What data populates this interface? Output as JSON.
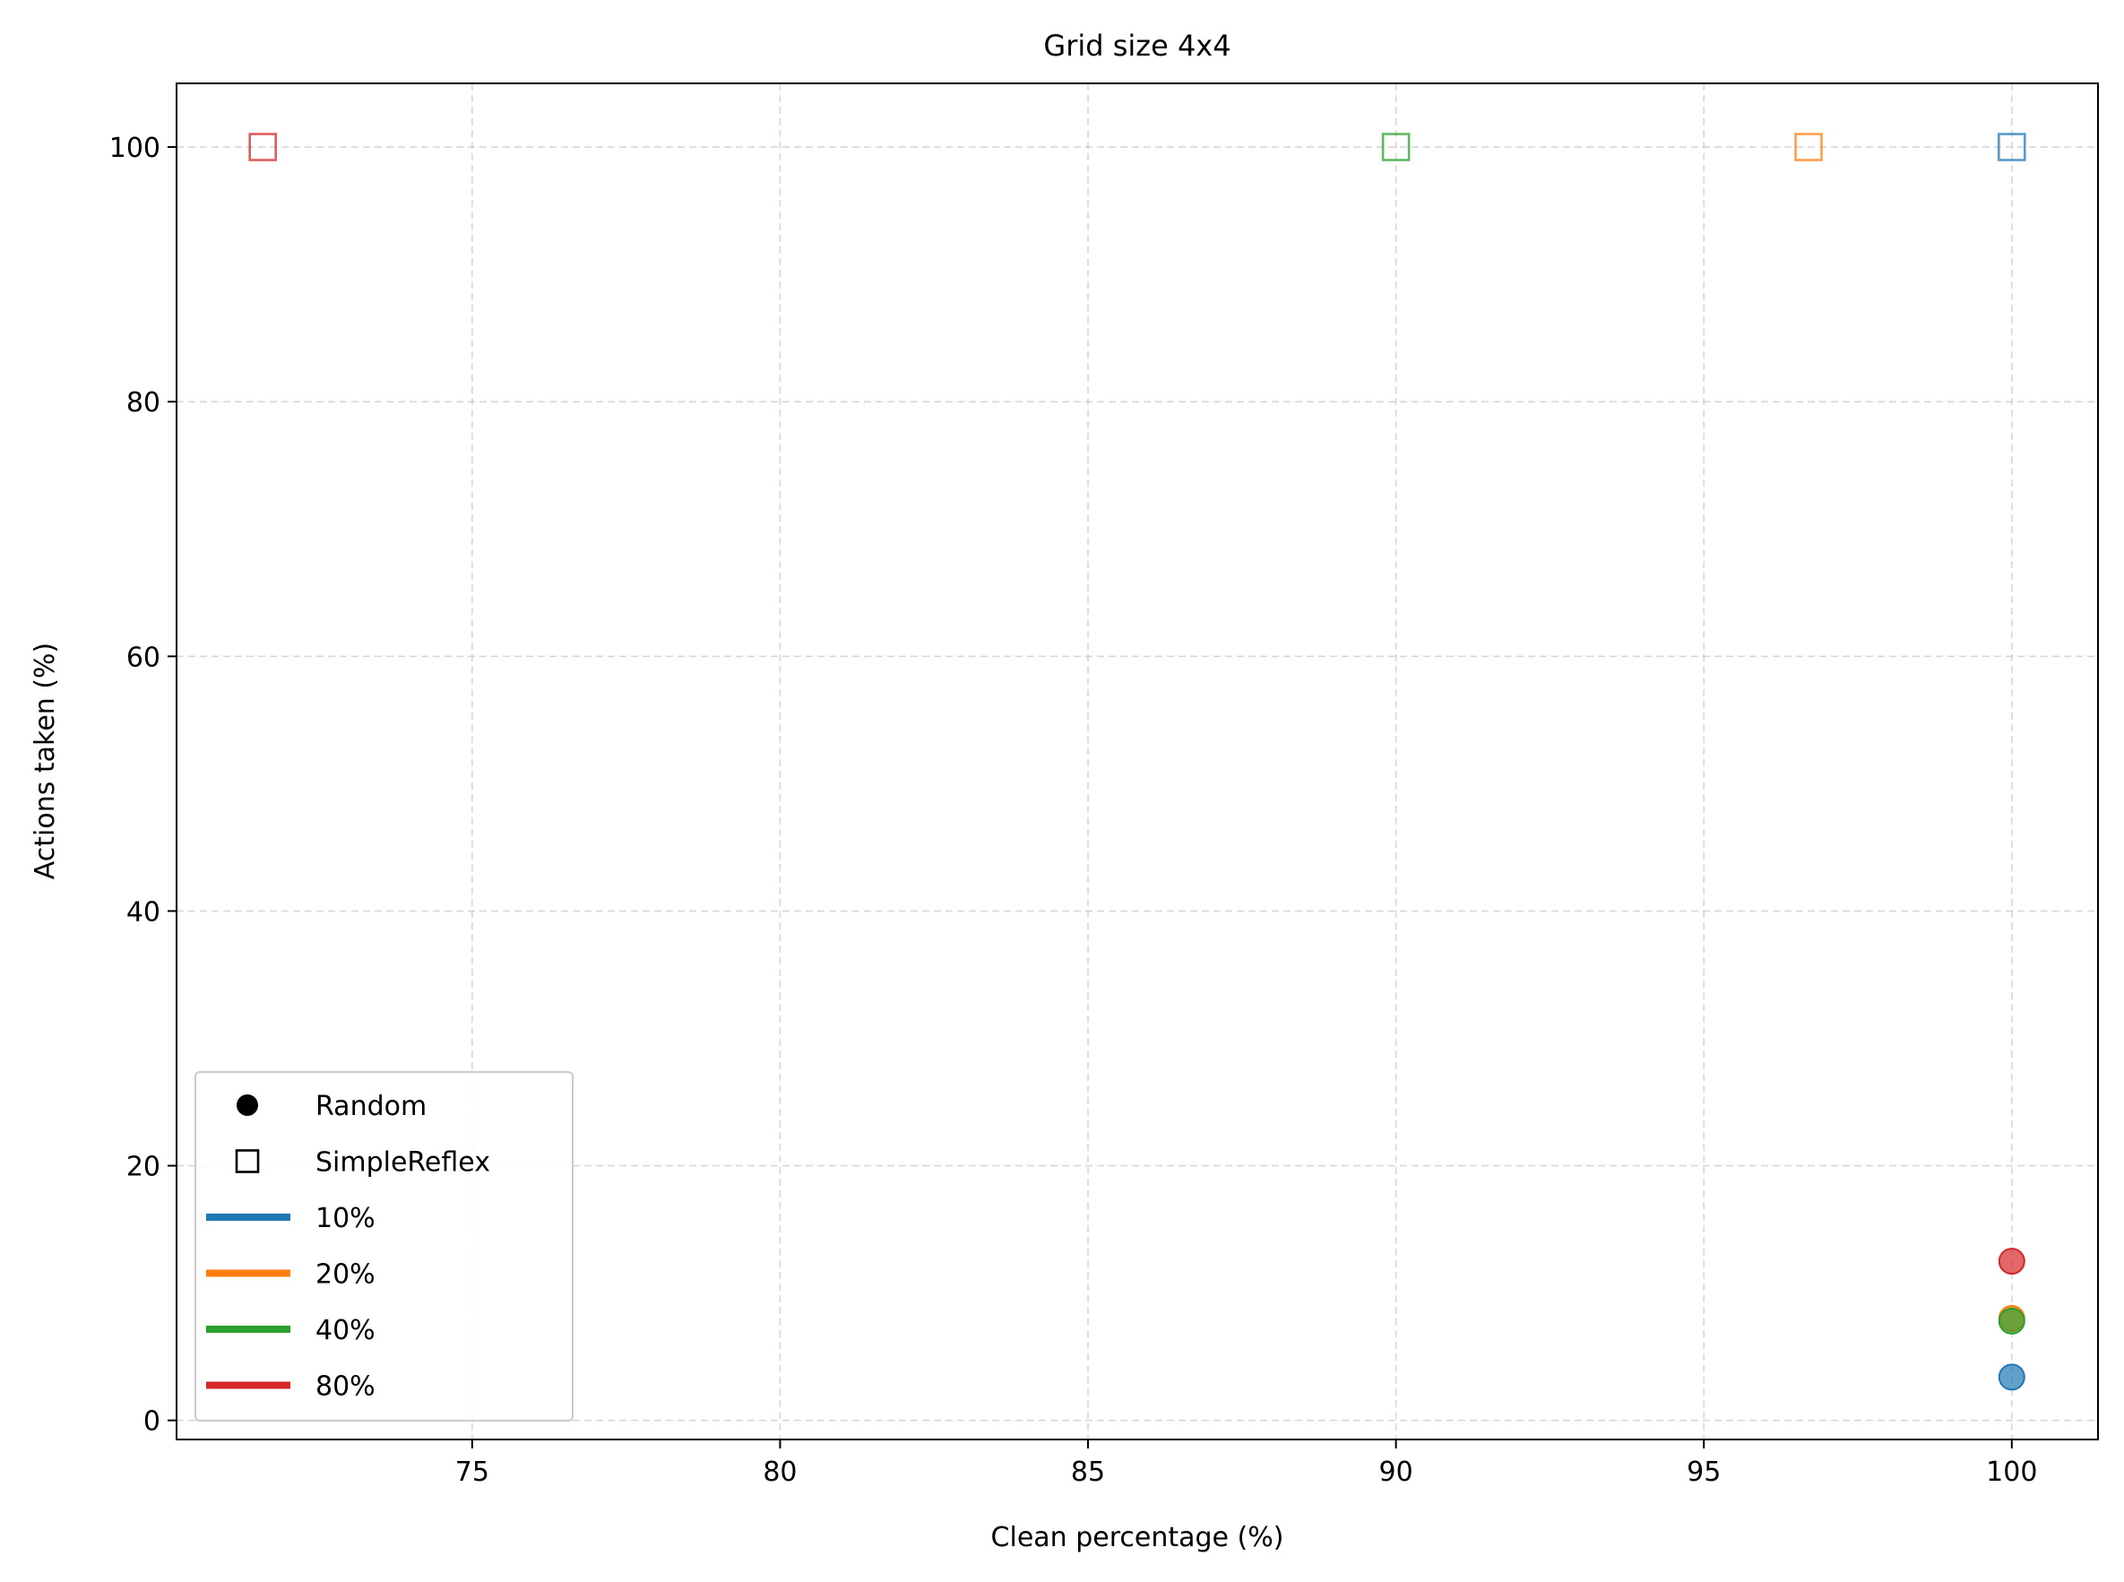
{
  "chart_data": {
    "type": "scatter",
    "title": "Grid size 4x4",
    "xlabel": "Clean percentage (%)",
    "ylabel": "Actions taken (%)",
    "xlim": [
      70.2,
      101.4
    ],
    "ylim": [
      -1.5,
      105
    ],
    "xticks": [
      75,
      80,
      85,
      90,
      95,
      100
    ],
    "yticks": [
      0,
      20,
      40,
      60,
      80,
      100
    ],
    "grid": true,
    "legend_position": "lower-left",
    "legend": {
      "markers": [
        {
          "label": "Random",
          "marker": "circle"
        },
        {
          "label": "SimpleReflex",
          "marker": "square"
        }
      ],
      "lines": [
        {
          "label": "10%",
          "color": "#1f77b4"
        },
        {
          "label": "20%",
          "color": "#ff7f0e"
        },
        {
          "label": "40%",
          "color": "#2ca02c"
        },
        {
          "label": "80%",
          "color": "#d62728"
        }
      ]
    },
    "series": [
      {
        "name": "10%",
        "color": "#1f77b4",
        "points": [
          {
            "agent": "Random",
            "marker": "circle",
            "x": 100,
            "y": 3.4
          },
          {
            "agent": "SimpleReflex",
            "marker": "square",
            "x": 100,
            "y": 100
          }
        ]
      },
      {
        "name": "20%",
        "color": "#ff7f0e",
        "points": [
          {
            "agent": "Random",
            "marker": "circle",
            "x": 100,
            "y": 8.0
          },
          {
            "agent": "SimpleReflex",
            "marker": "square",
            "x": 96.7,
            "y": 100
          }
        ]
      },
      {
        "name": "40%",
        "color": "#2ca02c",
        "points": [
          {
            "agent": "Random",
            "marker": "circle",
            "x": 100,
            "y": 7.8
          },
          {
            "agent": "SimpleReflex",
            "marker": "square",
            "x": 90,
            "y": 100
          }
        ]
      },
      {
        "name": "80%",
        "color": "#d62728",
        "points": [
          {
            "agent": "Random",
            "marker": "circle",
            "x": 100,
            "y": 12.5
          },
          {
            "agent": "SimpleReflex",
            "marker": "square",
            "x": 71.6,
            "y": 100
          }
        ]
      }
    ]
  }
}
